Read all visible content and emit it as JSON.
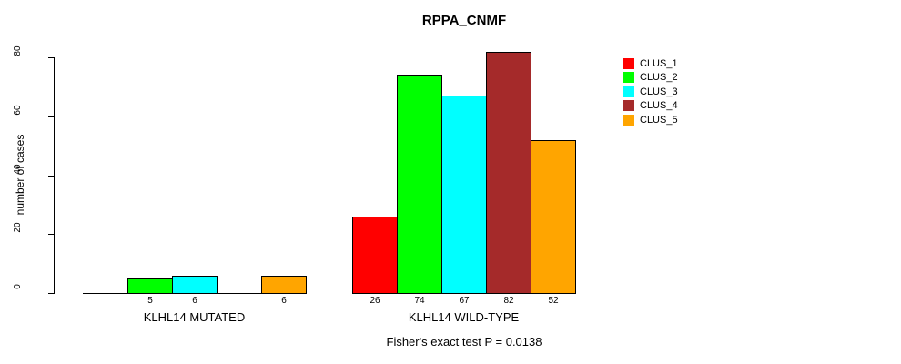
{
  "title": "RPPA_CNMF",
  "y_axis_label": "number of cases",
  "annotation": "Fisher's exact test P = 0.0138",
  "chart_data": {
    "type": "bar",
    "title": "RPPA_CNMF",
    "xlabel": "",
    "ylabel": "number of cases",
    "ylim": [
      0,
      80
    ],
    "yticks": [
      0,
      20,
      40,
      60,
      80
    ],
    "grid": false,
    "legend_position": "right",
    "categories": [
      "KLHL14 MUTATED",
      "KLHL14 WILD-TYPE"
    ],
    "series": [
      {
        "name": "CLUS_1",
        "color": "#ff0000",
        "values": [
          0,
          26
        ]
      },
      {
        "name": "CLUS_2",
        "color": "#00ff00",
        "values": [
          5,
          74
        ]
      },
      {
        "name": "CLUS_3",
        "color": "#00ffff",
        "values": [
          6,
          67
        ]
      },
      {
        "name": "CLUS_4",
        "color": "#a52a2a",
        "values": [
          0,
          82
        ]
      },
      {
        "name": "CLUS_5",
        "color": "#ffa500",
        "values": [
          6,
          52
        ]
      }
    ],
    "bar_value_labels": {
      "KLHL14 MUTATED": [
        "",
        "5",
        "6",
        "",
        "6"
      ],
      "KLHL14 WILD-TYPE": [
        "26",
        "74",
        "67",
        "82",
        "52"
      ]
    },
    "annotation": "Fisher's exact test P = 0.0138"
  }
}
